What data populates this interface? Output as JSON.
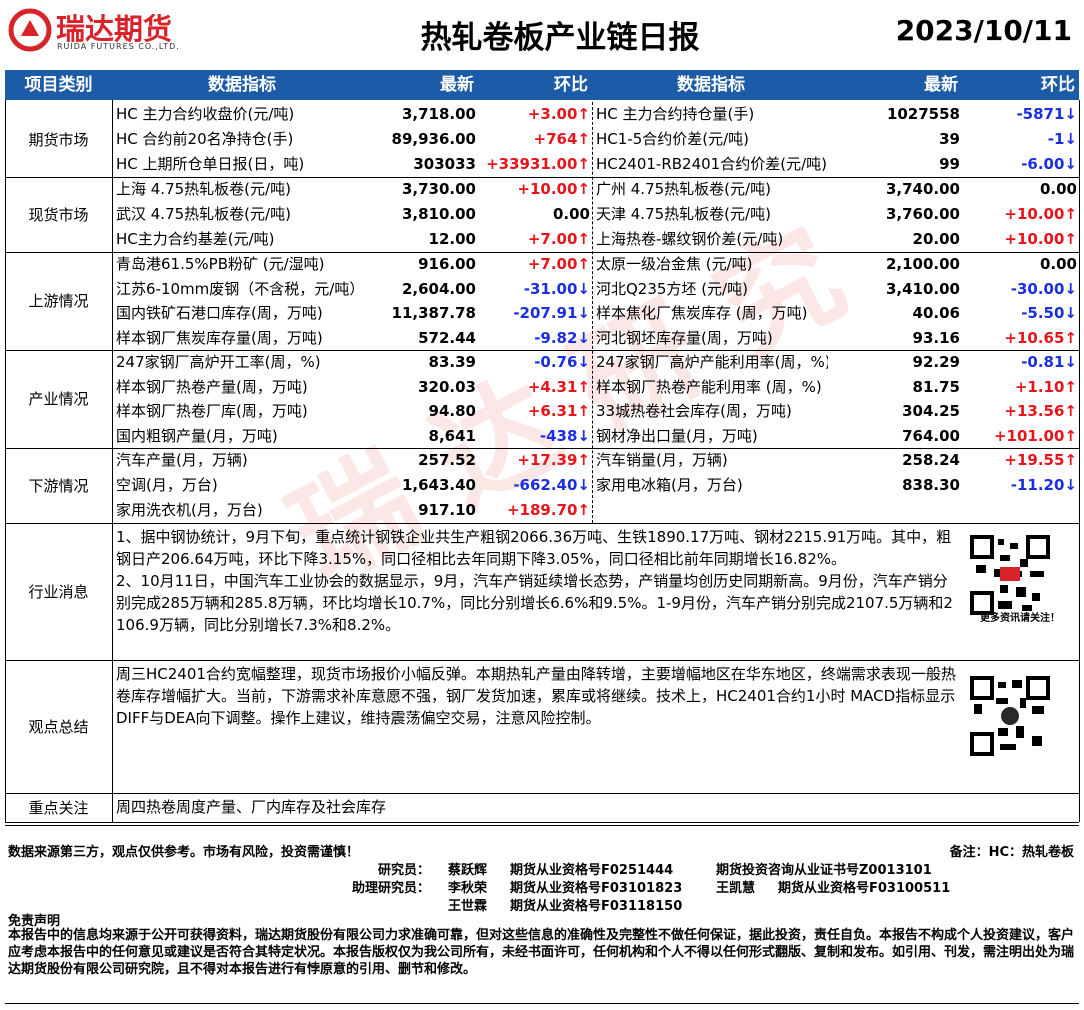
{
  "header": {
    "logo": "瑞达期货",
    "logo_en": "RUIDA FUTURES CO.,LTD.",
    "title": "热轧卷板产业链日报",
    "date": "2023/10/11"
  },
  "watermark": "瑞达研究",
  "table": {
    "columns": [
      "项目类别",
      "数据指标",
      "最新",
      "环比",
      "数据指标",
      "最新",
      "环比"
    ],
    "sections": [
      {
        "category": "期货市场",
        "rows": [
          [
            "HC 主力合约收盘价(元/吨)",
            "3,718.00",
            "+3.00↑",
            "HC 主力合约持仓量(手)",
            "1027558",
            "-5871↓"
          ],
          [
            "HC 合约前20名净持仓(手)",
            "89,936.00",
            "+764↑",
            "HC1-5合约价差(元/吨)",
            "39",
            "-1↓"
          ],
          [
            "HC 上期所仓单日报(日，吨)",
            "303033",
            "+33931.00↑",
            "HC2401-RB2401合约价差(元/吨)",
            "99",
            "-6.00↓"
          ]
        ]
      },
      {
        "category": "现货市场",
        "rows": [
          [
            "上海 4.75热轧板卷(元/吨)",
            "3,730.00",
            "+10.00↑",
            "广州 4.75热轧板卷(元/吨)",
            "3,740.00",
            "0.00"
          ],
          [
            "武汉 4.75热轧板卷(元/吨)",
            "3,810.00",
            "0.00",
            "天津 4.75热轧板卷(元/吨)",
            "3,760.00",
            "+10.00↑"
          ],
          [
            "HC主力合约基差(元/吨)",
            "12.00",
            "+7.00↑",
            "上海热卷-螺纹钢价差(元/吨)",
            "20.00",
            "+10.00↑"
          ]
        ]
      },
      {
        "category": "上游情况",
        "rows": [
          [
            "青岛港61.5%PB粉矿 (元/湿吨)",
            "916.00",
            "+7.00↑",
            "太原一级冶金焦 (元/吨)",
            "2,100.00",
            "0.00"
          ],
          [
            "江苏6-10mm废钢（不含税，元/吨）",
            "2,604.00",
            "-31.00↓",
            "河北Q235方坯 (元/吨)",
            "3,410.00",
            "-30.00↓"
          ],
          [
            "国内铁矿石港口库存(周，万吨)",
            "11,387.78",
            "-207.91↓",
            "样本焦化厂焦炭库存 (周，万吨)",
            "40.06",
            "-5.50↓"
          ],
          [
            "样本钢厂焦炭库存量(周，万吨)",
            "572.44",
            "-9.82↓",
            "河北钢坯库存量(周，万吨)",
            "93.16",
            "+10.65↑"
          ]
        ]
      },
      {
        "category": "产业情况",
        "rows": [
          [
            "247家钢厂高炉开工率(周，%)",
            "83.39",
            "-0.76↓",
            "247家钢厂高炉产能利用率(周，%)",
            "92.29",
            "-0.81↓"
          ],
          [
            "样本钢厂热卷产量(周，万吨)",
            "320.03",
            "+4.31↑",
            "样本钢厂热卷产能利用率 (周，%)",
            "81.75",
            "+1.10↑"
          ],
          [
            "样本钢厂热卷厂库(周，万吨)",
            "94.80",
            "+6.31↑",
            "33城热卷社会库存(周，万吨)",
            "304.25",
            "+13.56↑"
          ],
          [
            "国内粗钢产量(月，万吨)",
            "8,641",
            "-438↓",
            "钢材净出口量(月，万吨)",
            "764.00",
            "+101.00↑"
          ]
        ]
      },
      {
        "category": "下游情况",
        "rows": [
          [
            "汽车产量(月，万辆)",
            "257.52",
            "+17.39↑",
            "汽车销量(月，万辆)",
            "258.24",
            "+19.55↑"
          ],
          [
            "空调(月，万台)",
            "1,643.40",
            "-662.40↓",
            "家用电冰箱(月，万台)",
            "838.30",
            "-11.20↓"
          ],
          [
            "家用洗衣机(月，万台)",
            "917.10",
            "+189.70↑"
          ]
        ]
      }
    ]
  },
  "notes": [
    {
      "category": "行业消息",
      "paragraphs": [
        "1、据中钢协统计，9月下旬，重点统计钢铁企业共生产粗钢2066.36万吨、生铁1890.17万吨、钢材2215.91万吨。其中，粗钢日产206.64万吨，环比下降3.15%，同口径相比去年同期下降3.05%，同口径相比前年同期增长16.82%。",
        "2、10月11日，中国汽车工业协会的数据显示，9月，汽车产销延续增长态势，产销量均创历史同期新高。9月份，汽车产销分别完成285万辆和285.8万辆，环比均增长10.7%，同比分别增长6.6%和9.5%。1-9月份，汽车产销分别完成2107.5万辆和2106.9万辆，同比分别增长7.3%和8.2%。"
      ],
      "qr_caption": "更多资讯请关注！"
    },
    {
      "category": "观点总结",
      "paragraphs": [
        "周三HC2401合约宽幅整理，现货市场报价小幅反弹。本期热轧产量由降转增，主要增幅地区在华东地区，终端需求表现一般热卷库存增幅扩大。当前，下游需求补库意愿不强，钢厂发货加速，累库或将继续。技术上，HC2401合约1小时 MACD指标显示 DIFF与DEA向下调整。操作上建议，维持震荡偏空交易，注意风险控制。"
      ]
    },
    {
      "category": "重点关注",
      "paragraphs": [
        "周四热卷周度产量、厂内库存及社会库存"
      ]
    }
  ],
  "footer": {
    "source": "数据来源第三方，观点仅供参考。市场有风险，投资需谨慎！",
    "remark": "备注：HC：热轧卷板",
    "staff": [
      {
        "role": "研究员：",
        "entries": [
          "蔡跃辉",
          "期货从业资格号F0251444",
          "期货投资咨询从业证书号Z0013101"
        ]
      },
      {
        "role": "助理研究员：",
        "entries": [
          "李秋荣",
          "期货从业资格号F03101823",
          "王凯慧",
          "期货从业资格号F03100511"
        ]
      },
      {
        "entries": [
          "王世霖",
          "期货从业资格号F03118150"
        ]
      }
    ]
  },
  "disclaimer": {
    "title": "免责声明",
    "text": "本报告中的信息均来源于公开可获得资料，瑞达期货股份有限公司力求准确可靠，但对这些信息的准确性及完整性不做任何保证，据此投资，责任自负。本报告不构成个人投资建议，客户应考虑本报告中的任何意见或建议是否符合其特定状况。本报告版权仅为我公司所有，未经书面许可，任何机构和个人不得以任何形式翻版、复制和发布。如引用、刊发，需注明出处为瑞达期货股份有限公司研究院，且不得对本报告进行有悖原意的引用、删节和修改。"
  }
}
